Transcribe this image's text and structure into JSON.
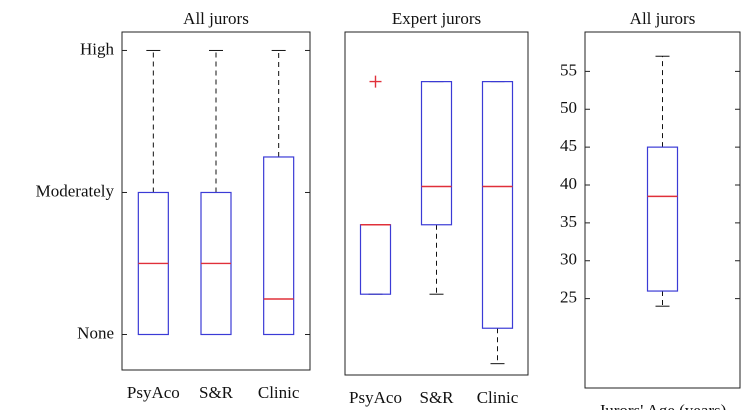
{
  "chart_data": [
    {
      "type": "box",
      "title": "All jurors",
      "categories": [
        "PsyAco",
        "S&R",
        "Clinic"
      ],
      "whislo": [
        0,
        0,
        0
      ],
      "q1": [
        0,
        0,
        0
      ],
      "median": [
        0.5,
        0.5,
        0.25
      ],
      "q3": [
        1,
        1,
        1.25
      ],
      "whishi": [
        2,
        2,
        2
      ],
      "outliers": [
        [],
        [],
        []
      ],
      "ylim": [
        -0.25,
        2.13
      ],
      "yticks": [
        {
          "value": 0,
          "label": "None"
        },
        {
          "value": 1,
          "label": "Moderately"
        },
        {
          "value": 2,
          "label": "High"
        }
      ],
      "box_color": "#3b3bd6",
      "median_color": "#e0303a",
      "outlier_color": "#e0303a"
    },
    {
      "type": "box",
      "title": "Expert jurors",
      "categories": [
        "PsyAco",
        "S&R",
        "Clinic"
      ],
      "whislo": [
        0.28,
        0.28,
        -0.21
      ],
      "q1": [
        0.28,
        0.77,
        0.04
      ],
      "median": [
        0.77,
        1.04,
        1.04
      ],
      "q3": [
        0.77,
        1.78,
        1.78
      ],
      "whishi": [
        0.77,
        1.78,
        1.78
      ],
      "outliers": [
        [
          1.78
        ],
        [],
        []
      ],
      "ylim": [
        -0.29,
        2.13
      ],
      "box_color": "#3b3bd6",
      "median_color": "#e0303a",
      "outlier_color": "#e0303a"
    },
    {
      "type": "box",
      "title": "All jurors",
      "categories": [
        "Jurors' Age (years)"
      ],
      "whislo": [
        24
      ],
      "q1": [
        26
      ],
      "median": [
        38.5
      ],
      "q3": [
        45
      ],
      "whishi": [
        57
      ],
      "outliers": [
        []
      ],
      "ylim": [
        13.2,
        60.2
      ],
      "yticks": [
        25,
        30,
        35,
        40,
        45,
        50,
        55
      ],
      "box_color": "#3b3bd6",
      "median_color": "#e0303a",
      "outlier_color": "#e0303a"
    }
  ]
}
